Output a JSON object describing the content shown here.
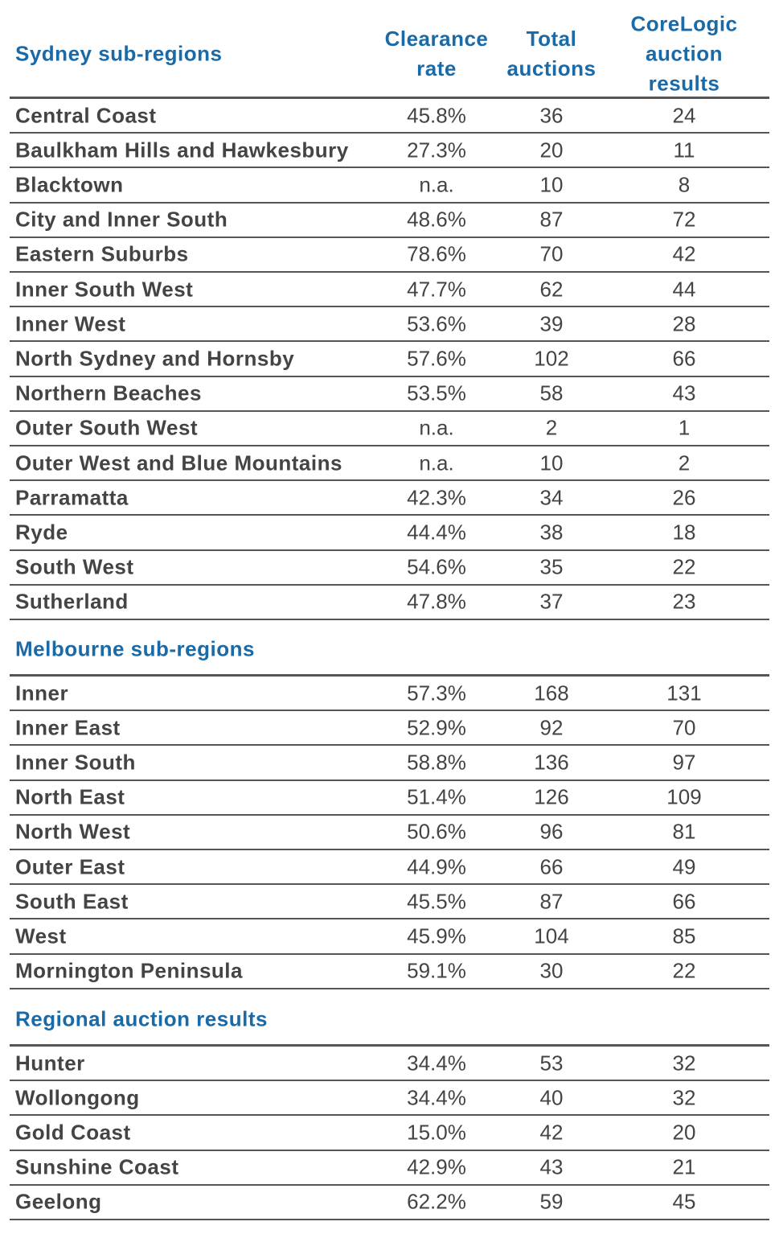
{
  "header": {
    "columns": [
      "Clearance rate",
      "Total auctions",
      "CoreLogic auction results"
    ]
  },
  "sections": [
    {
      "title": "Sydney sub-regions",
      "rows": [
        [
          "Central Coast",
          "45.8%",
          "36",
          "24"
        ],
        [
          "Baulkham Hills and Hawkesbury",
          "27.3%",
          "20",
          "11"
        ],
        [
          "Blacktown",
          "n.a.",
          "10",
          "8"
        ],
        [
          "City and Inner South",
          "48.6%",
          "87",
          "72"
        ],
        [
          "Eastern Suburbs",
          "78.6%",
          "70",
          "42"
        ],
        [
          "Inner South West",
          "47.7%",
          "62",
          "44"
        ],
        [
          "Inner West",
          "53.6%",
          "39",
          "28"
        ],
        [
          "North Sydney and Hornsby",
          "57.6%",
          "102",
          "66"
        ],
        [
          "Northern Beaches",
          "53.5%",
          "58",
          "43"
        ],
        [
          "Outer South West",
          "n.a.",
          "2",
          "1"
        ],
        [
          "Outer West and Blue Mountains",
          "n.a.",
          "10",
          "2"
        ],
        [
          "Parramatta",
          "42.3%",
          "34",
          "26"
        ],
        [
          "Ryde",
          "44.4%",
          "38",
          "18"
        ],
        [
          "South West",
          "54.6%",
          "35",
          "22"
        ],
        [
          "Sutherland",
          "47.8%",
          "37",
          "23"
        ]
      ]
    },
    {
      "title": "Melbourne sub-regions",
      "rows": [
        [
          "Inner",
          "57.3%",
          "168",
          "131"
        ],
        [
          "Inner East",
          "52.9%",
          "92",
          "70"
        ],
        [
          "Inner South",
          "58.8%",
          "136",
          "97"
        ],
        [
          "North East",
          "51.4%",
          "126",
          "109"
        ],
        [
          "North West",
          "50.6%",
          "96",
          "81"
        ],
        [
          "Outer East",
          "44.9%",
          "66",
          "49"
        ],
        [
          "South East",
          "45.5%",
          "87",
          "66"
        ],
        [
          "West",
          "45.9%",
          "104",
          "85"
        ],
        [
          "Mornington Peninsula",
          "59.1%",
          "30",
          "22"
        ]
      ]
    },
    {
      "title": "Regional auction results",
      "rows": [
        [
          "Hunter",
          "34.4%",
          "53",
          "32"
        ],
        [
          "Wollongong",
          "34.4%",
          "40",
          "32"
        ],
        [
          "Gold Coast",
          "15.0%",
          "42",
          "20"
        ],
        [
          "Sunshine Coast",
          "42.9%",
          "43",
          "21"
        ],
        [
          "Geelong",
          "62.2%",
          "59",
          "45"
        ]
      ]
    }
  ]
}
